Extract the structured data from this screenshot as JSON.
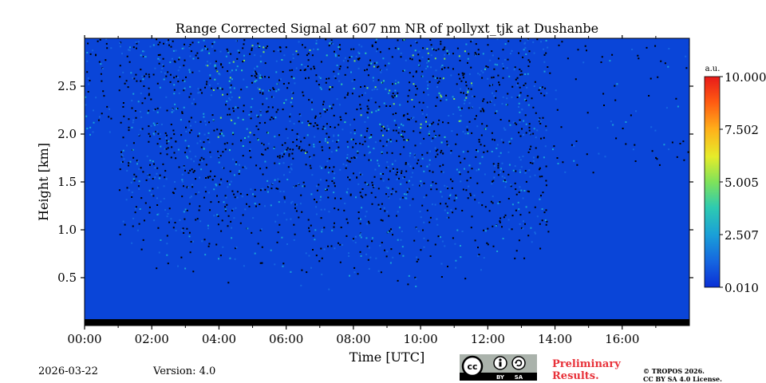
{
  "chart_data": {
    "type": "heatmap",
    "title": "Range Corrected Signal at 607 nm NR of pollyxt_tjk at Dushanbe",
    "xlabel": "Time [UTC]",
    "ylabel": "Height [km]",
    "x_ticks": [
      "00:00",
      "02:00",
      "04:00",
      "06:00",
      "08:00",
      "10:00",
      "12:00",
      "14:00",
      "16:00"
    ],
    "x_tick_hours": [
      0,
      2,
      4,
      6,
      8,
      10,
      12,
      14,
      16
    ],
    "xlim_hours": [
      0,
      18
    ],
    "y_ticks": [
      "0.5",
      "1.0",
      "1.5",
      "2.0",
      "2.5"
    ],
    "y_tick_values": [
      0.5,
      1.0,
      1.5,
      2.0,
      2.5
    ],
    "ylim_km": [
      0,
      3.0
    ],
    "colorbar": {
      "unit_label": "a.u.",
      "ticks": [
        "10.000",
        "7.502",
        "5.005",
        "2.507",
        "0.010"
      ],
      "tick_values": [
        10.0,
        7.502,
        5.005,
        2.507,
        0.01
      ],
      "range": [
        0.01,
        10.0
      ],
      "colors": [
        "#0a2fd6",
        "#1565e0",
        "#1aa0d8",
        "#2ecbb0",
        "#7fe25a",
        "#e6ec2a",
        "#ffb01a",
        "#ff5a12",
        "#e81a1a"
      ]
    }
  },
  "footer": {
    "date": "2026-03-22",
    "version": "Version: 4.0",
    "preliminary_line1": "Preliminary",
    "preliminary_line2": "Results.",
    "copyright_line1": "© TROPOS 2026.",
    "copyright_line2": "CC BY SA 4.0 License.",
    "license_cc": "cc",
    "license_by": "BY",
    "license_sa": "SA"
  }
}
